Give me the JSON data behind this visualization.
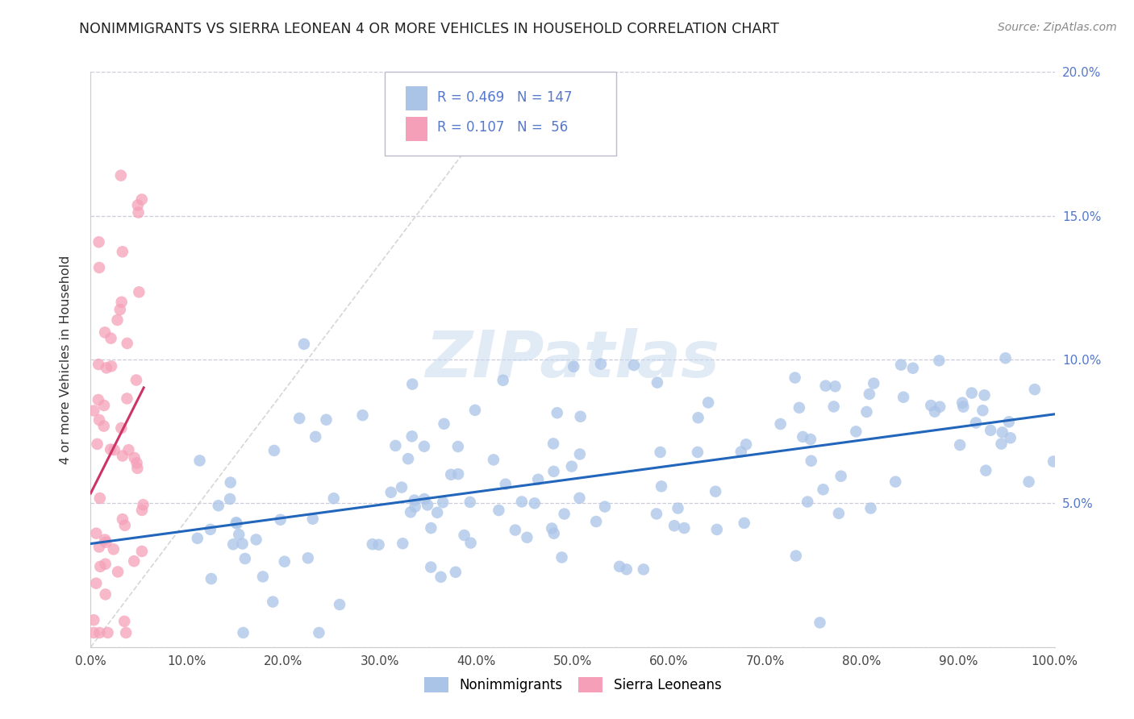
{
  "title": "NONIMMIGRANTS VS SIERRA LEONEAN 4 OR MORE VEHICLES IN HOUSEHOLD CORRELATION CHART",
  "source": "Source: ZipAtlas.com",
  "ylabel": "4 or more Vehicles in Household",
  "xlim": [
    0,
    1.0
  ],
  "ylim": [
    0,
    0.2
  ],
  "xticks": [
    0.0,
    0.1,
    0.2,
    0.3,
    0.4,
    0.5,
    0.6,
    0.7,
    0.8,
    0.9,
    1.0
  ],
  "xticklabels": [
    "0.0%",
    "10.0%",
    "20.0%",
    "30.0%",
    "40.0%",
    "50.0%",
    "60.0%",
    "70.0%",
    "80.0%",
    "90.0%",
    "100.0%"
  ],
  "yticks": [
    0.0,
    0.05,
    0.1,
    0.15,
    0.2
  ],
  "yticklabels": [
    "",
    "5.0%",
    "10.0%",
    "15.0%",
    "20.0%"
  ],
  "nonimmigrant_color": "#aac4e8",
  "sierra_leonean_color": "#f5a0b8",
  "nonimmigrant_line_color": "#2266bb",
  "sierra_leonean_line_color": "#cc3366",
  "R_nonimmigrant": 0.469,
  "N_nonimmigrant": 147,
  "R_sierra_leonean": 0.107,
  "N_sierra_leonean": 56,
  "legend_label_1": "Nonimmigrants",
  "legend_label_2": "Sierra Leoneans",
  "watermark": "ZIPatlas",
  "tick_color": "#5577cc",
  "grid_color": "#ccccdd",
  "title_color": "#222222",
  "source_color": "#888888"
}
